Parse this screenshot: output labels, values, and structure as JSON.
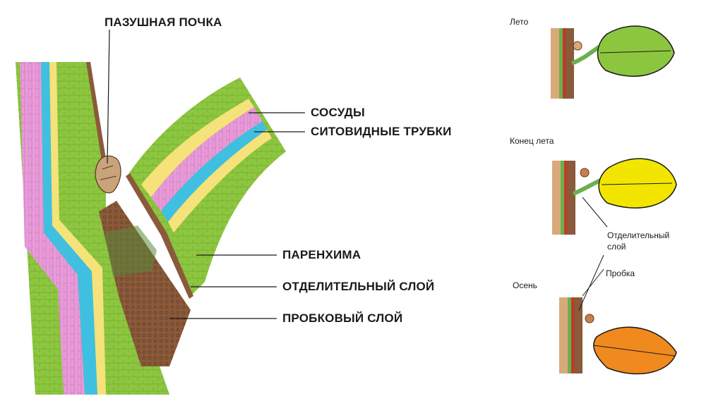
{
  "main_diagram": {
    "labels": {
      "axillary_bud": "ПАЗУШНАЯ ПОЧКА",
      "vessels": "СОСУДЫ",
      "sieve_tubes": "СИТОВИДНЫЕ ТРУБКИ",
      "parenchyma": "ПАРЕНХИМА",
      "separating_layer": "ОТДЕЛИТЕЛЬНЫЙ СЛОЙ",
      "cork_layer": "ПРОБКОВЫЙ СЛОЙ"
    }
  },
  "stages": {
    "summer": "Лето",
    "late_summer": "Конец лета",
    "autumn": "Осень",
    "separating_layer_label": "Отделительный\nслой",
    "cork_label": "Пробка"
  },
  "colors": {
    "parenchyma": "#8dc63f",
    "vessels": "#f5e27a",
    "sieve_tubes": "#3fc0e0",
    "pink_tissue": "#e89ad8",
    "cork": "#8a5a3a",
    "summer_leaf": "#8cc63f",
    "late_summer_leaf": "#f2e600",
    "autumn_leaf": "#f08a1e"
  }
}
